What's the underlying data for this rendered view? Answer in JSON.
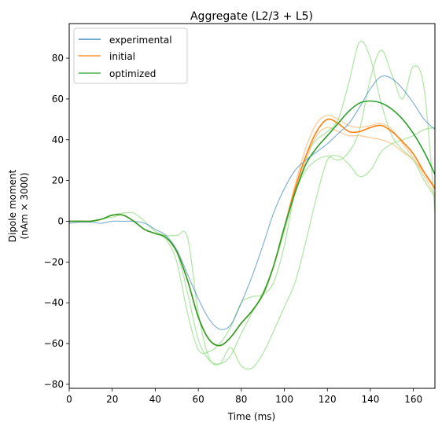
{
  "chart_data": {
    "type": "line",
    "title": "Aggregate (L2/3 + L5)",
    "xlabel": "Time (ms)",
    "ylabel_lines": [
      "Dipole moment",
      "(nAm × 3000)"
    ],
    "xlim": [
      0,
      170
    ],
    "ylim": [
      -82,
      97
    ],
    "xticks": [
      0,
      20,
      40,
      60,
      80,
      100,
      120,
      140,
      160
    ],
    "yticks": [
      -80,
      -60,
      -40,
      -20,
      0,
      20,
      40,
      60,
      80
    ],
    "grid": false,
    "legend_position": "top-left",
    "series": [
      {
        "name": "experimental",
        "color": "#1f77b4",
        "role": "mean",
        "x": [
          0,
          5,
          10,
          15,
          20,
          25,
          30,
          35,
          40,
          45,
          50,
          55,
          60,
          65,
          70,
          75,
          80,
          85,
          90,
          95,
          100,
          105,
          110,
          115,
          120,
          125,
          130,
          135,
          140,
          145,
          150,
          155,
          160,
          165,
          170
        ],
        "y": [
          -1,
          -0.5,
          -0.5,
          -1,
          0,
          0,
          0,
          -1,
          -4,
          -7,
          -14,
          -26,
          -38,
          -48,
          -53,
          -51,
          -40,
          -27,
          -12,
          4,
          16,
          25,
          30,
          34,
          38,
          43,
          48,
          56,
          65,
          71,
          70,
          65,
          58,
          50,
          45
        ]
      },
      {
        "name": "initial",
        "color": "#ff7f0e",
        "role": "mean",
        "x": [
          0,
          5,
          10,
          15,
          20,
          25,
          30,
          35,
          40,
          45,
          50,
          55,
          60,
          65,
          70,
          75,
          80,
          85,
          90,
          95,
          100,
          105,
          110,
          115,
          120,
          125,
          130,
          135,
          140,
          145,
          150,
          155,
          160,
          165,
          170
        ],
        "y": [
          0,
          0,
          0,
          1,
          3,
          3,
          0,
          -4,
          -6,
          -8,
          -15,
          -29,
          -47,
          -58,
          -61,
          -57,
          -50,
          -44,
          -36,
          -22,
          -3,
          16,
          32,
          44,
          50,
          48,
          44,
          44,
          46,
          47,
          44,
          39,
          33,
          24,
          16
        ]
      },
      {
        "name": "optimized",
        "color": "#2ca02c",
        "role": "mean",
        "x": [
          0,
          5,
          10,
          15,
          20,
          25,
          30,
          35,
          40,
          45,
          50,
          55,
          60,
          65,
          70,
          75,
          80,
          85,
          90,
          95,
          100,
          105,
          110,
          115,
          120,
          125,
          130,
          135,
          140,
          145,
          150,
          155,
          160,
          165,
          170
        ],
        "y": [
          0,
          0,
          0,
          1,
          3,
          3,
          0,
          -4,
          -6,
          -8,
          -15,
          -29,
          -47,
          -58,
          -61,
          -57,
          -50,
          -44,
          -36,
          -22,
          -3,
          14,
          28,
          36,
          42,
          48,
          54,
          58,
          59,
          58,
          55,
          50,
          43,
          34,
          23
        ]
      }
    ],
    "trials": [
      {
        "color": "#ffbb78",
        "x": [
          0,
          5,
          10,
          15,
          20,
          25,
          30,
          35,
          40,
          45,
          50,
          55,
          60,
          65,
          70,
          75,
          80,
          85,
          90,
          95,
          100,
          105,
          110,
          115,
          120,
          125,
          130,
          135,
          140,
          145,
          150,
          155,
          160,
          165,
          170
        ],
        "y": [
          0,
          0,
          0,
          1,
          3,
          3,
          0,
          -4,
          -6,
          -8,
          -15,
          -29,
          -47,
          -58,
          -61,
          -57,
          -50,
          -44,
          -36,
          -22,
          -3,
          18,
          36,
          48,
          52,
          50,
          47,
          46,
          47,
          48,
          45,
          38,
          31,
          22,
          13
        ]
      },
      {
        "color": "#ffbb78",
        "x": [
          0,
          5,
          10,
          15,
          20,
          25,
          30,
          35,
          40,
          45,
          50,
          55,
          60,
          65,
          70,
          75,
          80,
          85,
          90,
          95,
          100,
          105,
          110,
          115,
          120,
          125,
          130,
          135,
          140,
          145,
          150,
          155,
          160,
          165,
          170
        ],
        "y": [
          0,
          0,
          0,
          1,
          3,
          3,
          0,
          -4,
          -6,
          -8,
          -15,
          -29,
          -47,
          -58,
          -61,
          -57,
          -50,
          -44,
          -36,
          -22,
          -3,
          14,
          30,
          42,
          46,
          44,
          42,
          42,
          41,
          40,
          38,
          34,
          30,
          24,
          17
        ]
      },
      {
        "color": "#98df8a",
        "x": [
          0,
          5,
          10,
          15,
          20,
          25,
          30,
          35,
          40,
          45,
          50,
          55,
          60,
          65,
          70,
          75,
          80,
          85,
          90,
          95,
          100,
          105,
          110,
          115,
          120,
          125,
          130,
          135,
          140,
          145,
          150,
          155,
          160,
          165,
          170
        ],
        "y": [
          0,
          0,
          0,
          1,
          2,
          3,
          0,
          -4,
          -6,
          -9,
          -20,
          -45,
          -63,
          -64,
          -60,
          -52,
          -40,
          -37,
          -36,
          -30,
          -12,
          15,
          32,
          40,
          44,
          50,
          68,
          88,
          80,
          58,
          42,
          35,
          30,
          20,
          12
        ]
      },
      {
        "color": "#98df8a",
        "x": [
          0,
          5,
          10,
          15,
          20,
          25,
          30,
          35,
          40,
          45,
          50,
          55,
          60,
          65,
          70,
          75,
          80,
          85,
          90,
          95,
          100,
          105,
          110,
          115,
          120,
          125,
          130,
          135,
          140,
          145,
          150,
          155,
          160,
          165,
          170
        ],
        "y": [
          0,
          0,
          0,
          1,
          3,
          4,
          4,
          0,
          -5,
          -7,
          -7,
          -8,
          -45,
          -67,
          -70,
          -62,
          -71,
          -72,
          -65,
          -54,
          -42,
          -30,
          -10,
          12,
          30,
          32,
          28,
          22,
          25,
          34,
          38,
          40,
          42,
          45,
          46
        ]
      },
      {
        "color": "#98df8a",
        "x": [
          0,
          5,
          10,
          15,
          20,
          25,
          30,
          35,
          40,
          45,
          50,
          55,
          60,
          65,
          70,
          75,
          80,
          85,
          90,
          95,
          100,
          105,
          110,
          115,
          120,
          125,
          130,
          135,
          140,
          145,
          150,
          155,
          160,
          165,
          170
        ],
        "y": [
          0,
          0,
          0,
          1,
          3,
          3,
          0,
          -4,
          -6,
          -8,
          -15,
          -35,
          -58,
          -68,
          -70,
          -66,
          -55,
          -45,
          -35,
          -22,
          -5,
          14,
          25,
          30,
          32,
          30,
          34,
          45,
          70,
          84,
          72,
          60,
          76,
          65,
          5
        ]
      }
    ]
  }
}
